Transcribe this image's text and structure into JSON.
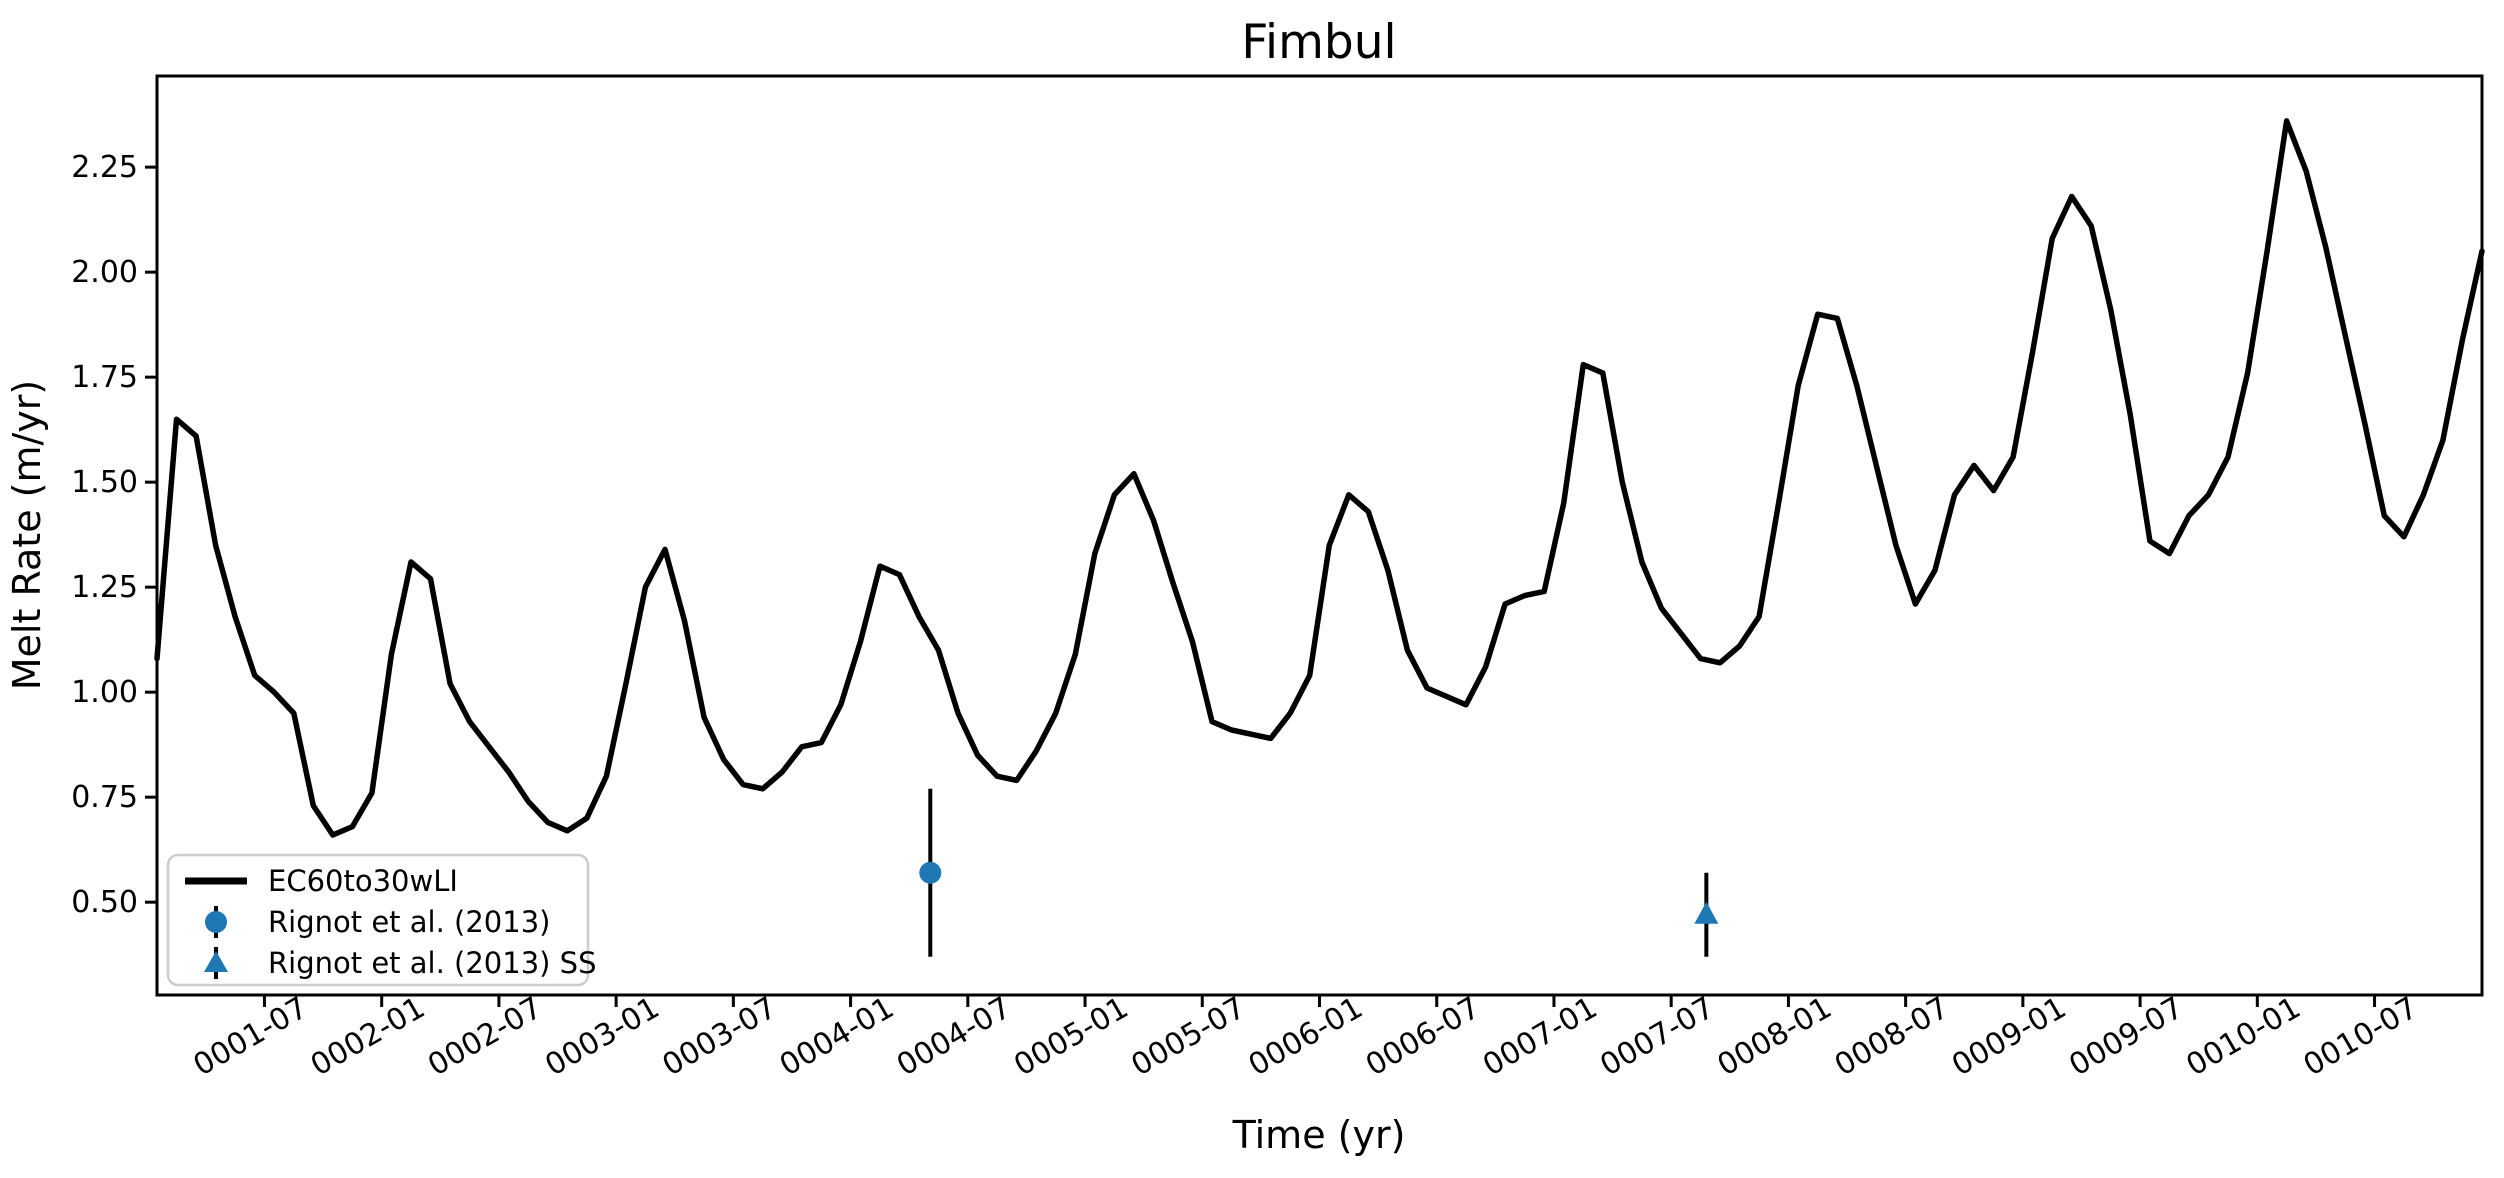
{
  "figure": {
    "background": "#ffffff",
    "line_color": "#000000",
    "marker_color": "#1f77b4",
    "legend_border_color": "#cccccc"
  },
  "chart_data": {
    "type": "line",
    "title": "Fimbul",
    "xlabel": "Time (yr)",
    "ylabel": "Melt Rate (m/yr)",
    "grid": false,
    "xlim_years": [
      1.0417,
      10.9583
    ],
    "ylim": [
      0.279,
      2.467
    ],
    "y_ticks": [
      "0.50",
      "0.75",
      "1.00",
      "1.25",
      "1.50",
      "1.75",
      "2.00",
      "2.25"
    ],
    "x_tick_labels": [
      "0001-07",
      "0002-01",
      "0002-07",
      "0003-01",
      "0003-07",
      "0004-01",
      "0004-07",
      "0005-01",
      "0005-07",
      "0006-01",
      "0006-07",
      "0007-01",
      "0007-07",
      "0008-01",
      "0008-07",
      "0009-01",
      "0009-07",
      "0010-01",
      "0010-07"
    ],
    "series": [
      {
        "name": "EC60to30wLI",
        "color": "#000000",
        "cadence": "monthly",
        "start_year": 1,
        "monthly_values_by_year": [
          [
            1.08,
            1.65,
            1.61,
            1.35,
            1.18,
            1.04,
            1.0,
            0.95,
            0.73,
            0.66,
            0.68,
            0.76
          ],
          [
            1.09,
            1.31,
            1.27,
            1.02,
            0.93,
            0.87,
            0.81,
            0.74,
            0.69,
            0.67,
            0.7,
            0.8
          ],
          [
            1.02,
            1.25,
            1.34,
            1.17,
            0.94,
            0.84,
            0.78,
            0.77,
            0.81,
            0.87,
            0.88,
            0.97
          ],
          [
            1.12,
            1.3,
            1.28,
            1.18,
            1.1,
            0.95,
            0.85,
            0.8,
            0.79,
            0.86,
            0.95,
            1.09
          ],
          [
            1.33,
            1.47,
            1.52,
            1.41,
            1.26,
            1.12,
            0.93,
            0.91,
            0.9,
            0.89,
            0.95,
            1.04
          ],
          [
            1.35,
            1.47,
            1.43,
            1.29,
            1.1,
            1.01,
            0.99,
            0.97,
            1.06,
            1.21,
            1.23,
            1.24
          ],
          [
            1.45,
            1.78,
            1.76,
            1.5,
            1.31,
            1.2,
            1.14,
            1.08,
            1.07,
            1.11,
            1.18,
            1.45
          ],
          [
            1.73,
            1.9,
            1.89,
            1.73,
            1.54,
            1.35,
            1.21,
            1.29,
            1.47,
            1.54,
            1.48,
            1.56
          ],
          [
            1.81,
            2.08,
            2.18,
            2.11,
            1.91,
            1.66,
            1.36,
            1.33,
            1.42,
            1.47,
            1.56,
            1.76
          ],
          [
            2.05,
            2.36,
            2.24,
            2.06,
            1.85,
            1.64,
            1.42,
            1.37,
            1.47,
            1.6,
            1.84,
            2.05
          ]
        ]
      }
    ],
    "observations": [
      {
        "label": "Rignot et al. (2013)",
        "marker": "circle",
        "color": "#1f77b4",
        "time_yr": 4.34,
        "value": 0.57,
        "error": 0.2
      },
      {
        "label": "Rignot et al. (2013) SS",
        "marker": "triangle",
        "color": "#1f77b4",
        "time_yr": 7.65,
        "value": 0.47,
        "error": 0.1
      }
    ],
    "legend": {
      "position": "lower left"
    }
  }
}
